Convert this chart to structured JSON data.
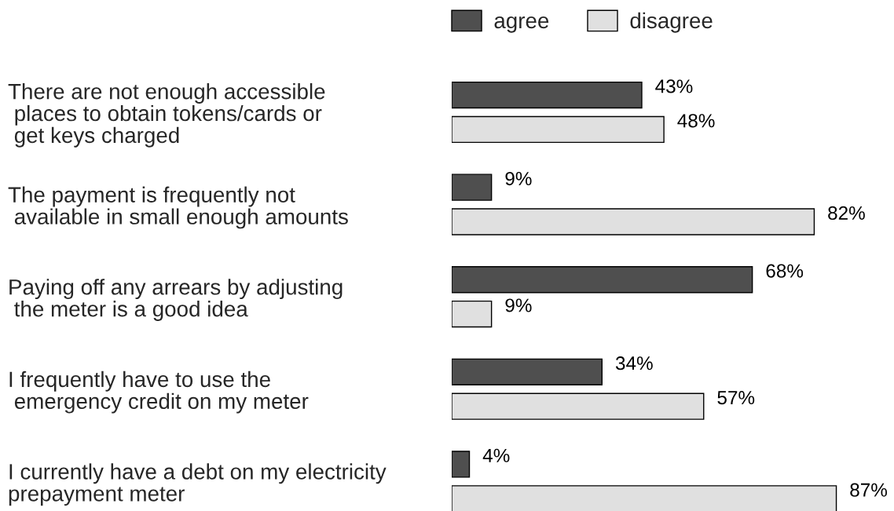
{
  "chart_data": {
    "type": "bar",
    "orientation": "horizontal",
    "categories": [
      "There are not enough accessible\n places to obtain tokens/cards or\n get keys charged",
      "The payment is frequently not\n available in small enough amounts",
      "Paying off any arrears by adjusting\n the meter is a good idea",
      "I frequently have to use the\n emergency credit on my meter",
      "I currently have a debt on my electricity\nprepayment meter"
    ],
    "series": [
      {
        "name": "agree",
        "color": "#4f4f4f",
        "values": [
          43,
          9,
          68,
          34,
          4
        ],
        "value_labels": [
          "43%",
          "9%",
          "68%",
          "34%",
          "4%"
        ]
      },
      {
        "name": "disagree",
        "color": "#e0e0e0",
        "values": [
          48,
          82,
          9,
          57,
          87
        ],
        "value_labels": [
          "48%",
          "82%",
          "9%",
          "57%",
          "87%"
        ]
      }
    ],
    "legend": "top",
    "grid": false,
    "tick_labels": "y"
  }
}
